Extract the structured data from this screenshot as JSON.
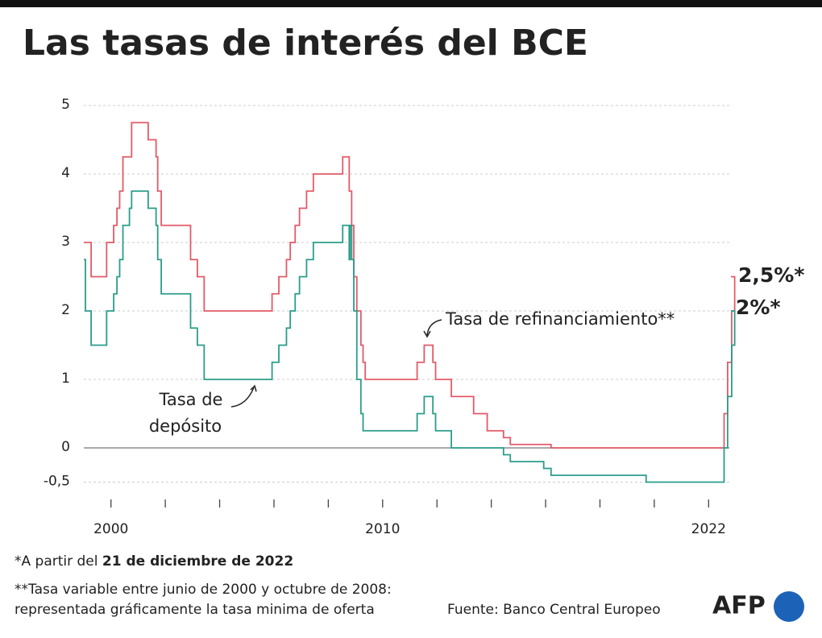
{
  "chart_data": {
    "type": "step-line",
    "title": "Las tasas de interés del BCE",
    "xlim": [
      1999,
      2023
    ],
    "xticks": [
      2000,
      2010,
      2022
    ],
    "minor_xticks": [
      2002,
      2004,
      2006,
      2008,
      2012,
      2014,
      2016,
      2018,
      2020
    ],
    "ylim": [
      -0.8,
      5.1
    ],
    "yticks": [
      5,
      4,
      3,
      2,
      1,
      0,
      {
        "value": -0.5,
        "label": "-0,5"
      }
    ],
    "grid": true,
    "series": [
      {
        "name": "Tasa de refinanciamiento**",
        "color": "#e35a68",
        "x": [
          1999.0,
          1999.27,
          1999.84,
          2000.1,
          2000.22,
          2000.32,
          2000.44,
          2000.76,
          2001.37,
          2001.66,
          2001.72,
          2001.85,
          2002.93,
          2003.18,
          2003.43,
          2005.93,
          2006.18,
          2006.46,
          2006.6,
          2006.78,
          2006.94,
          2007.2,
          2007.45,
          2008.53,
          2008.77,
          2008.86,
          2008.94,
          2009.05,
          2009.2,
          2009.28,
          2009.36,
          2011.27,
          2011.53,
          2011.85,
          2011.95,
          2012.53,
          2013.35,
          2013.85,
          2014.45,
          2014.7,
          2016.2,
          2022.57,
          2022.7,
          2022.85,
          2022.96
        ],
        "values": [
          3.0,
          2.5,
          3.0,
          3.25,
          3.5,
          3.75,
          4.25,
          4.75,
          4.5,
          4.25,
          3.75,
          3.25,
          2.75,
          2.5,
          2.0,
          2.25,
          2.5,
          2.75,
          3.0,
          3.25,
          3.5,
          3.75,
          4.0,
          4.25,
          3.75,
          3.25,
          2.5,
          2.0,
          1.5,
          1.25,
          1.0,
          1.25,
          1.5,
          1.25,
          1.0,
          0.75,
          0.5,
          0.25,
          0.15,
          0.05,
          0.0,
          0.5,
          1.25,
          2.0,
          2.5
        ]
      },
      {
        "name": "Tasa de depósito",
        "color": "#2a9d8a",
        "x": [
          1999.0,
          1999.06,
          1999.27,
          1999.84,
          2000.1,
          2000.22,
          2000.32,
          2000.44,
          2000.68,
          2000.76,
          2001.37,
          2001.66,
          2001.72,
          2001.85,
          2002.93,
          2003.18,
          2003.43,
          2005.93,
          2006.18,
          2006.46,
          2006.6,
          2006.78,
          2006.94,
          2007.2,
          2007.45,
          2008.53,
          2008.77,
          2008.8,
          2008.86,
          2008.94,
          2009.05,
          2009.2,
          2009.28,
          2011.27,
          2011.53,
          2011.85,
          2011.95,
          2012.53,
          2014.45,
          2014.7,
          2015.93,
          2016.2,
          2019.7,
          2022.57,
          2022.7,
          2022.85,
          2022.96
        ],
        "values": [
          2.75,
          2.0,
          1.5,
          2.0,
          2.25,
          2.5,
          2.75,
          3.25,
          3.5,
          3.75,
          3.5,
          3.25,
          2.75,
          2.25,
          1.75,
          1.5,
          1.0,
          1.25,
          1.5,
          1.75,
          2.0,
          2.25,
          2.5,
          2.75,
          3.0,
          3.25,
          2.75,
          3.25,
          2.75,
          2.0,
          1.0,
          0.5,
          0.25,
          0.5,
          0.75,
          0.5,
          0.25,
          0.0,
          -0.1,
          -0.2,
          -0.3,
          -0.4,
          -0.5,
          0.0,
          0.75,
          1.5,
          2.0
        ]
      }
    ],
    "end_labels": [
      "2,5%*",
      "2%*"
    ],
    "annotations": [
      "Tasa de",
      "depósito"
    ],
    "footnotes": [
      "*A partir del ",
      "21 de diciembre de 2022",
      "**Tasa variable entre junio de 2000 y octubre de 2008:",
      "representada gráficamente la tasa minima de oferta"
    ],
    "source": "Fuente: Banco Central Europeo",
    "logo": "AFP"
  }
}
